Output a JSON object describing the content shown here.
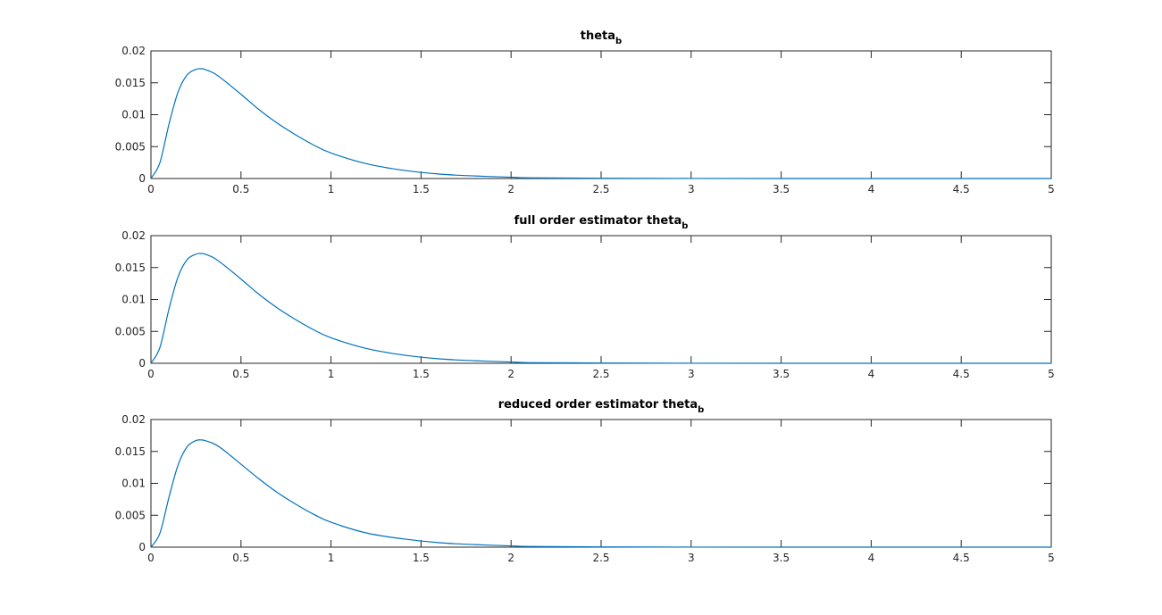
{
  "chart_data": [
    {
      "type": "line",
      "title": "theta",
      "title_subscript": "b",
      "xlim": [
        0,
        5
      ],
      "ylim": [
        0,
        0.02
      ],
      "xticks": [
        "0",
        "0.5",
        "1",
        "1.5",
        "2",
        "2.5",
        "3",
        "3.5",
        "4",
        "4.5",
        "5"
      ],
      "yticks": [
        "0",
        "0.005",
        "0.01",
        "0.015",
        "0.02"
      ],
      "grid": false,
      "series": [
        {
          "color": "#0072BD",
          "x": [
            0,
            0.05,
            0.1,
            0.15,
            0.2,
            0.25,
            0.28,
            0.3,
            0.35,
            0.4,
            0.5,
            0.6,
            0.7,
            0.8,
            0.9,
            1.0,
            1.2,
            1.4,
            1.6,
            1.8,
            2.0,
            2.1,
            2.5,
            3.0,
            3.5,
            4.0,
            4.5,
            5.0
          ],
          "y": [
            0,
            0.0025,
            0.0085,
            0.0135,
            0.0162,
            0.0171,
            0.0172,
            0.0171,
            0.0165,
            0.0155,
            0.0132,
            0.0108,
            0.0087,
            0.0069,
            0.0053,
            0.004,
            0.0023,
            0.0013,
            0.0007,
            0.0004,
            0.0002,
            0.0001,
            4e-05,
            1e-05,
            0,
            0,
            0,
            0
          ]
        }
      ]
    },
    {
      "type": "line",
      "title": "full order estimator theta",
      "title_subscript": "b",
      "xlim": [
        0,
        5
      ],
      "ylim": [
        0,
        0.02
      ],
      "xticks": [
        "0",
        "0.5",
        "1",
        "1.5",
        "2",
        "2.5",
        "3",
        "3.5",
        "4",
        "4.5",
        "5"
      ],
      "yticks": [
        "0",
        "0.005",
        "0.01",
        "0.015",
        "0.02"
      ],
      "grid": false,
      "series": [
        {
          "color": "#0072BD",
          "x": [
            0,
            0.05,
            0.1,
            0.15,
            0.2,
            0.25,
            0.28,
            0.3,
            0.35,
            0.4,
            0.5,
            0.6,
            0.7,
            0.8,
            0.9,
            1.0,
            1.2,
            1.4,
            1.6,
            1.8,
            2.0,
            2.1,
            2.5,
            3.0,
            3.5,
            4.0,
            4.5,
            5.0
          ],
          "y": [
            0,
            0.0025,
            0.0085,
            0.0135,
            0.0162,
            0.0171,
            0.0172,
            0.0171,
            0.0165,
            0.0155,
            0.0132,
            0.0108,
            0.0087,
            0.0069,
            0.0053,
            0.004,
            0.0023,
            0.0013,
            0.0007,
            0.0004,
            0.0002,
            0.0001,
            4e-05,
            1e-05,
            0,
            0,
            0,
            0
          ]
        }
      ]
    },
    {
      "type": "line",
      "title": "reduced order estimator theta",
      "title_subscript": "b",
      "xlim": [
        0,
        5
      ],
      "ylim": [
        0,
        0.02
      ],
      "xticks": [
        "0",
        "0.5",
        "1",
        "1.5",
        "2",
        "2.5",
        "3",
        "3.5",
        "4",
        "4.5",
        "5"
      ],
      "yticks": [
        "0",
        "0.005",
        "0.01",
        "0.015",
        "0.02"
      ],
      "grid": false,
      "series": [
        {
          "color": "#0072BD",
          "x": [
            0,
            0.05,
            0.1,
            0.15,
            0.2,
            0.25,
            0.28,
            0.3,
            0.35,
            0.4,
            0.5,
            0.6,
            0.7,
            0.8,
            0.9,
            1.0,
            1.2,
            1.4,
            1.6,
            1.8,
            2.0,
            2.1,
            2.5,
            3.0,
            3.5,
            4.0,
            4.5,
            5.0
          ],
          "y": [
            0,
            0.0022,
            0.0078,
            0.0128,
            0.0157,
            0.0167,
            0.0168,
            0.0167,
            0.0162,
            0.0153,
            0.013,
            0.0107,
            0.0086,
            0.0068,
            0.0052,
            0.0039,
            0.0022,
            0.0013,
            0.0007,
            0.0004,
            0.0002,
            0.0001,
            4e-05,
            1e-05,
            0,
            0,
            0,
            0
          ]
        }
      ]
    }
  ]
}
